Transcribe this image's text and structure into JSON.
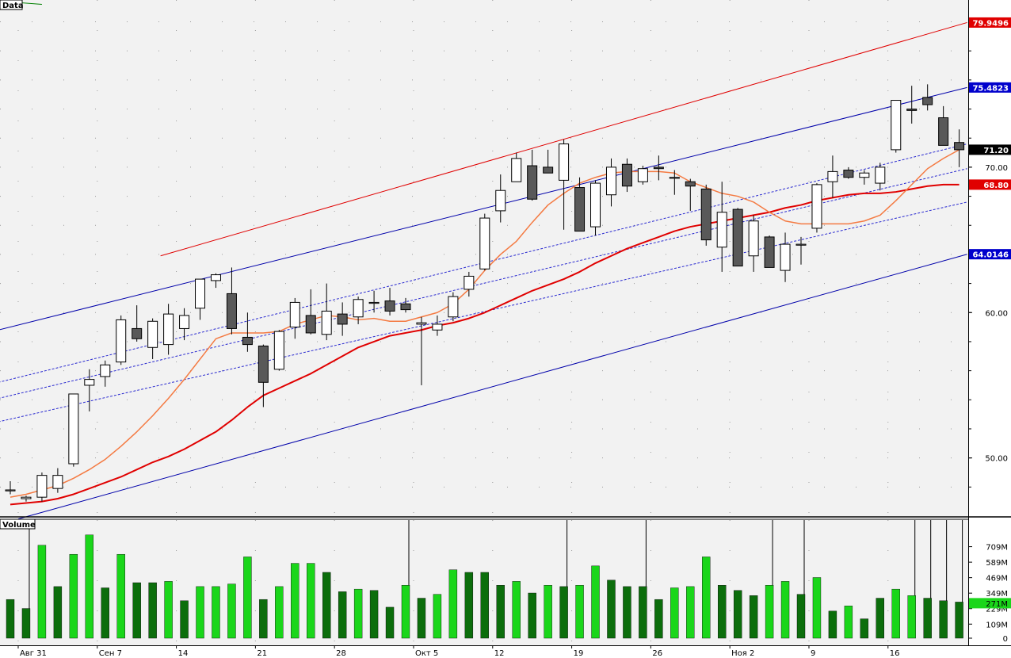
{
  "chart_data": [
    {
      "type": "candlestick",
      "panel": "Data",
      "title": "Data",
      "ylim": [
        46.0,
        81.5
      ],
      "y_ticks": [
        "50.00",
        "60.00",
        "70.00"
      ],
      "y_tick_values": [
        50,
        60,
        70
      ],
      "grid": "dotted",
      "x_tick_labels": [
        "Авг 31",
        "Сен 7",
        "14",
        "21",
        "28",
        "Окт 5",
        "12",
        "19",
        "26",
        "Ноя 2",
        "9",
        "16"
      ],
      "x_tick_index": [
        1,
        6,
        11,
        16,
        21,
        26,
        31,
        36,
        41,
        46,
        51,
        56
      ],
      "price_badges": [
        {
          "label": "79.9496",
          "value": 79.9496,
          "color": "#e00000",
          "text_color": "#ffffff"
        },
        {
          "label": "75.4823",
          "value": 75.4823,
          "color": "#0000cc",
          "text_color": "#ffffff"
        },
        {
          "label": "71.20",
          "value": 71.2,
          "color": "#000000",
          "text_color": "#ffffff"
        },
        {
          "label": "68.80",
          "value": 68.8,
          "color": "#e00000",
          "text_color": "#ffffff"
        },
        {
          "label": "64.0146",
          "value": 64.0146,
          "color": "#0000cc",
          "text_color": "#ffffff"
        }
      ],
      "ohlc": [
        [
          47.8,
          48.4,
          47.5,
          47.8
        ],
        [
          47.2,
          47.4,
          47.0,
          47.3
        ],
        [
          47.3,
          49.0,
          47.0,
          48.8
        ],
        [
          47.9,
          49.3,
          47.6,
          48.8
        ],
        [
          49.6,
          54.4,
          49.4,
          54.4
        ],
        [
          55.0,
          56.1,
          53.2,
          55.4
        ],
        [
          55.6,
          56.7,
          54.9,
          56.4
        ],
        [
          56.6,
          59.8,
          56.4,
          59.5
        ],
        [
          58.9,
          60.5,
          58.0,
          58.2
        ],
        [
          57.6,
          59.6,
          56.8,
          59.4
        ],
        [
          57.8,
          60.6,
          57.1,
          59.9
        ],
        [
          58.9,
          60.3,
          58.1,
          59.8
        ],
        [
          60.3,
          62.3,
          59.5,
          62.3
        ],
        [
          62.2,
          62.7,
          61.7,
          62.6
        ],
        [
          61.3,
          63.1,
          58.5,
          58.9
        ],
        [
          58.3,
          60.0,
          57.3,
          57.8
        ],
        [
          57.7,
          57.8,
          53.5,
          55.2
        ],
        [
          56.1,
          58.8,
          56.0,
          58.7
        ],
        [
          59.0,
          61.0,
          58.2,
          60.7
        ],
        [
          59.8,
          61.6,
          58.5,
          58.6
        ],
        [
          58.5,
          62.0,
          58.1,
          60.1
        ],
        [
          59.9,
          60.7,
          58.4,
          59.2
        ],
        [
          59.7,
          61.1,
          59.2,
          60.9
        ],
        [
          60.7,
          61.5,
          60.0,
          60.7
        ],
        [
          60.8,
          61.7,
          59.8,
          60.1
        ],
        [
          60.6,
          61.0,
          60.0,
          60.2
        ],
        [
          59.2,
          59.7,
          55.0,
          59.3
        ],
        [
          58.8,
          59.8,
          58.4,
          59.2
        ],
        [
          59.7,
          61.4,
          59.4,
          61.1
        ],
        [
          61.6,
          62.8,
          61.1,
          62.5
        ],
        [
          63.0,
          66.8,
          62.9,
          66.5
        ],
        [
          67.0,
          69.5,
          66.2,
          68.4
        ],
        [
          69.0,
          71.0,
          69.0,
          70.6
        ],
        [
          70.1,
          71.2,
          67.7,
          67.8
        ],
        [
          70.0,
          71.2,
          69.6,
          69.6
        ],
        [
          69.1,
          71.9,
          65.7,
          71.6
        ],
        [
          68.6,
          69.3,
          65.6,
          65.6
        ],
        [
          65.9,
          69.1,
          65.3,
          68.9
        ],
        [
          68.1,
          70.6,
          67.3,
          70.0
        ],
        [
          70.2,
          70.6,
          68.3,
          68.7
        ],
        [
          69.0,
          70.1,
          68.8,
          69.9
        ],
        [
          70.0,
          70.8,
          69.1,
          69.9
        ],
        [
          69.3,
          69.8,
          68.1,
          69.3
        ],
        [
          69.0,
          69.2,
          67.0,
          68.7
        ],
        [
          68.5,
          68.8,
          64.6,
          65.0
        ],
        [
          64.5,
          69.0,
          62.8,
          66.9
        ],
        [
          67.1,
          67.2,
          63.2,
          63.2
        ],
        [
          63.9,
          66.7,
          62.8,
          66.3
        ],
        [
          65.2,
          65.3,
          63.1,
          63.1
        ],
        [
          62.9,
          65.5,
          62.1,
          64.7
        ],
        [
          64.7,
          65.2,
          63.3,
          64.7
        ],
        [
          65.8,
          68.9,
          65.5,
          68.8
        ],
        [
          69.0,
          70.8,
          67.9,
          69.7
        ],
        [
          69.8,
          70.0,
          69.2,
          69.3
        ],
        [
          69.3,
          69.8,
          68.8,
          69.6
        ],
        [
          68.9,
          70.3,
          68.4,
          70.0
        ],
        [
          71.2,
          74.6,
          71.0,
          74.6
        ],
        [
          74.0,
          75.6,
          73.0,
          73.9
        ],
        [
          74.8,
          75.7,
          73.9,
          74.3
        ],
        [
          73.4,
          74.2,
          71.5,
          71.5
        ],
        [
          71.7,
          72.6,
          70.0,
          71.2
        ]
      ],
      "ma_fast": [
        47.3,
        47.5,
        47.8,
        48.1,
        48.6,
        49.2,
        49.9,
        50.8,
        51.8,
        52.9,
        54.1,
        55.4,
        56.8,
        58.2,
        58.6,
        58.6,
        58.6,
        58.7,
        59.2,
        59.5,
        59.8,
        59.7,
        59.5,
        59.6,
        59.4,
        59.4,
        59.7,
        60.0,
        60.6,
        61.6,
        62.9,
        64.0,
        64.9,
        66.2,
        67.4,
        68.2,
        68.9,
        69.3,
        69.6,
        69.7,
        69.7,
        69.7,
        69.6,
        69.0,
        68.6,
        68.2,
        68.0,
        67.6,
        66.9,
        66.3,
        66.1,
        66.1,
        66.1,
        66.1,
        66.3,
        66.7,
        67.7,
        68.8,
        69.9,
        70.6,
        71.2
      ],
      "ma_slow": [
        46.8,
        46.9,
        47.0,
        47.2,
        47.5,
        47.9,
        48.3,
        48.7,
        49.2,
        49.7,
        50.1,
        50.6,
        51.2,
        51.8,
        52.6,
        53.5,
        54.3,
        54.8,
        55.3,
        55.8,
        56.4,
        57.0,
        57.6,
        58.0,
        58.4,
        58.6,
        58.8,
        59.1,
        59.3,
        59.6,
        60.0,
        60.5,
        61.0,
        61.5,
        61.9,
        62.3,
        62.8,
        63.4,
        63.9,
        64.4,
        64.8,
        65.2,
        65.6,
        65.9,
        66.1,
        66.3,
        66.5,
        66.7,
        66.9,
        67.2,
        67.4,
        67.7,
        67.9,
        68.1,
        68.2,
        68.2,
        68.3,
        68.5,
        68.7,
        68.8,
        68.8
      ],
      "channel_upper": [
        [
          -1.5,
          58.6
        ],
        [
          60.5,
          75.48
        ]
      ],
      "channel_lower": [
        [
          0.5,
          45.8
        ],
        [
          60.5,
          64.01
        ]
      ],
      "channel_outer": [
        [
          9.5,
          63.9
        ],
        [
          60.5,
          79.95
        ]
      ],
      "channel_inner": [
        [
          [
            -1.5,
            55.0
          ],
          [
            60.5,
            71.6
          ]
        ],
        [
          [
            -1.5,
            53.9
          ],
          [
            60.5,
            69.9
          ]
        ],
        [
          [
            -1.5,
            52.3
          ],
          [
            60.5,
            67.6
          ]
        ]
      ],
      "corner_line": [
        [
          -1.6,
          81.5
        ],
        [
          2.0,
          81.2
        ]
      ],
      "colors": {
        "up_body": "#ffffff",
        "down_body": "#595959",
        "ma_fast": "#f47a42",
        "ma_slow": "#e00000",
        "channel": "#0000aa",
        "outer": "#e00000",
        "corner": "#008000"
      }
    },
    {
      "type": "bar",
      "panel": "Volume",
      "title": "Volume",
      "ylim": [
        0,
        860
      ],
      "y_ticks": [
        "709M",
        "589M",
        "469M",
        "349M",
        "229M",
        "109M",
        "0"
      ],
      "y_tick_values": [
        709,
        589,
        469,
        349,
        229,
        109,
        0
      ],
      "badge": {
        "label": "271M",
        "value": 271,
        "color": "#1ad61a"
      },
      "values": [
        300,
        230,
        720,
        400,
        650,
        800,
        390,
        650,
        430,
        430,
        440,
        290,
        400,
        400,
        420,
        630,
        300,
        400,
        580,
        580,
        510,
        360,
        380,
        370,
        240,
        410,
        310,
        340,
        530,
        510,
        510,
        410,
        440,
        350,
        410,
        400,
        410,
        560,
        450,
        400,
        400,
        300,
        390,
        400,
        630,
        410,
        370,
        330,
        410,
        440,
        340,
        470,
        210,
        250,
        150,
        310,
        380,
        330,
        310,
        290,
        280
      ],
      "volume_spikes": [
        0,
        1,
        0,
        0,
        0,
        0,
        0,
        0,
        0,
        0,
        0,
        0,
        0,
        0,
        0,
        0,
        0,
        0,
        0,
        0,
        0,
        0,
        0,
        0,
        0,
        1,
        0,
        0,
        0,
        0,
        0,
        0,
        0,
        0,
        0,
        1,
        0,
        0,
        0,
        0,
        1,
        0,
        0,
        0,
        0,
        0,
        0,
        0,
        1,
        0,
        1,
        0,
        0,
        0,
        0,
        0,
        0,
        1,
        1,
        1,
        1
      ],
      "bar_colors": [
        "dark",
        "dark",
        "bright",
        "dark",
        "bright",
        "bright",
        "dark",
        "bright",
        "dark",
        "dark",
        "bright",
        "dark",
        "bright",
        "bright",
        "bright",
        "bright",
        "dark",
        "bright",
        "bright",
        "bright",
        "dark",
        "dark",
        "bright",
        "dark",
        "dark",
        "bright",
        "dark",
        "bright",
        "bright",
        "dark",
        "dark",
        "dark",
        "bright",
        "dark",
        "bright",
        "dark",
        "bright",
        "bright",
        "dark",
        "dark",
        "dark",
        "dark",
        "bright",
        "bright",
        "bright",
        "dark",
        "dark",
        "dark",
        "bright",
        "bright",
        "dark",
        "bright",
        "dark",
        "bright",
        "dark",
        "dark",
        "bright",
        "bright",
        "dark",
        "dark",
        "dark"
      ],
      "colors": {
        "bright": "#1ad61a",
        "dark": "#0c6e0c"
      }
    }
  ]
}
